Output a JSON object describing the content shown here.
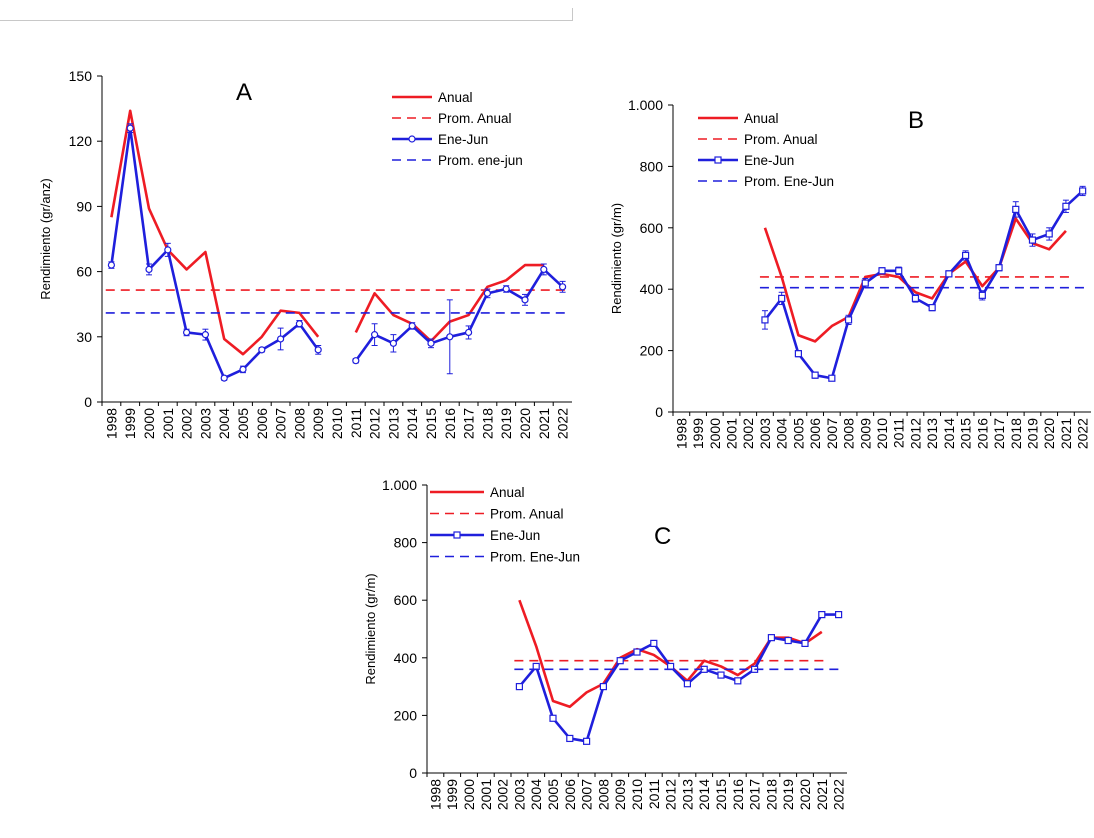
{
  "chart_data": [
    {
      "panel": "A",
      "type": "line",
      "ylabel": "Rendimiento (gr/anz)",
      "ylim": [
        0,
        150
      ],
      "yticks": [
        0,
        30,
        60,
        90,
        120,
        150
      ],
      "yticklabels": [
        "0",
        "30",
        "60",
        "90",
        "120",
        "150"
      ],
      "categories": [
        "1998",
        "1999",
        "2000",
        "2001",
        "2002",
        "2003",
        "2004",
        "2005",
        "2006",
        "2007",
        "2008",
        "2009",
        "2010",
        "2011",
        "2012",
        "2013",
        "2014",
        "2015",
        "2016",
        "2017",
        "2018",
        "2019",
        "2020",
        "2021",
        "2022"
      ],
      "legend_position": "top-right",
      "series": [
        {
          "name": "Anual",
          "color": "#ee1c24",
          "style": "solid",
          "values": [
            85,
            134,
            89,
            70,
            61,
            69,
            29,
            22,
            30,
            42,
            41,
            30,
            null,
            32,
            50,
            40,
            36,
            28,
            37,
            40,
            53,
            56,
            63,
            63,
            null
          ]
        },
        {
          "name": "Prom. Anual",
          "color": "#ee1c24",
          "style": "dashed",
          "constant": 51.5,
          "x_range": [
            "1998",
            "2022"
          ]
        },
        {
          "name": "Ene-Jun",
          "color": "#1f1fdc",
          "style": "solid",
          "marker": "circle",
          "values": [
            63,
            126,
            61,
            70,
            32,
            31,
            11,
            15,
            24,
            29,
            36,
            24,
            null,
            19,
            31,
            27,
            35,
            27,
            30,
            32,
            50,
            52,
            47,
            61,
            53
          ],
          "errors": [
            1.5,
            2,
            2.5,
            3,
            1.5,
            2.5,
            1,
            1.5,
            1,
            5,
            1.5,
            2,
            null,
            1,
            5,
            4,
            1.5,
            2,
            17,
            3,
            2,
            1.5,
            2.5,
            2.5,
            2.5
          ]
        },
        {
          "name": "Prom. ene-jun",
          "color": "#1f1fdc",
          "style": "dashed",
          "constant": 41,
          "x_range": [
            "1998",
            "2022"
          ]
        }
      ]
    },
    {
      "panel": "B",
      "type": "line",
      "ylabel": "Rendimiento (gr/m)",
      "ylim": [
        0,
        1000
      ],
      "yticks": [
        0,
        200,
        400,
        600,
        800,
        1000
      ],
      "yticklabels": [
        "0",
        "200",
        "400",
        "600",
        "800",
        "1.000"
      ],
      "categories": [
        "1998",
        "1999",
        "2000",
        "2001",
        "2002",
        "2003",
        "2004",
        "2005",
        "2006",
        "2007",
        "2008",
        "2009",
        "2010",
        "2011",
        "2012",
        "2013",
        "2014",
        "2015",
        "2016",
        "2017",
        "2018",
        "2019",
        "2020",
        "2021",
        "2022"
      ],
      "legend_position": "top-left",
      "series": [
        {
          "name": "Anual",
          "color": "#ee1c24",
          "style": "solid",
          "values": [
            null,
            null,
            null,
            null,
            null,
            600,
            440,
            250,
            230,
            280,
            310,
            440,
            450,
            440,
            390,
            370,
            450,
            490,
            410,
            470,
            630,
            550,
            530,
            590,
            null
          ]
        },
        {
          "name": "Prom. Anual",
          "color": "#ee1c24",
          "style": "dashed",
          "constant": 440,
          "x_range": [
            "2003",
            "2021"
          ]
        },
        {
          "name": "Ene-Jun",
          "color": "#1f1fdc",
          "style": "solid",
          "marker": "square",
          "values": [
            null,
            null,
            null,
            null,
            null,
            300,
            370,
            190,
            120,
            110,
            300,
            420,
            460,
            460,
            370,
            340,
            450,
            510,
            380,
            470,
            660,
            560,
            580,
            670,
            720
          ],
          "errors": [
            null,
            null,
            null,
            null,
            null,
            30,
            20,
            10,
            10,
            8,
            15,
            15,
            10,
            12,
            12,
            10,
            10,
            15,
            15,
            10,
            25,
            20,
            20,
            20,
            15
          ]
        },
        {
          "name": "Prom. Ene-Jun",
          "color": "#1f1fdc",
          "style": "dashed",
          "constant": 405,
          "x_range": [
            "2003",
            "2022"
          ]
        }
      ]
    },
    {
      "panel": "C",
      "type": "line",
      "ylabel": "Rendimiento (gr/m)",
      "ylim": [
        0,
        1000
      ],
      "yticks": [
        0,
        200,
        400,
        600,
        800,
        1000
      ],
      "yticklabels": [
        "0",
        "200",
        "400",
        "600",
        "800",
        "1.000"
      ],
      "categories": [
        "1998",
        "1999",
        "2000",
        "2001",
        "2002",
        "2003",
        "2004",
        "2005",
        "2006",
        "2007",
        "2008",
        "2009",
        "2010",
        "2011",
        "2012",
        "2013",
        "2014",
        "2015",
        "2016",
        "2017",
        "2018",
        "2019",
        "2020",
        "2021",
        "2022"
      ],
      "legend_position": "top-left",
      "series": [
        {
          "name": "Anual",
          "color": "#ee1c24",
          "style": "solid",
          "values": [
            null,
            null,
            null,
            null,
            null,
            600,
            440,
            250,
            230,
            280,
            310,
            400,
            430,
            410,
            370,
            320,
            390,
            370,
            340,
            380,
            470,
            470,
            450,
            490,
            null
          ]
        },
        {
          "name": "Prom. Anual",
          "color": "#ee1c24",
          "style": "dashed",
          "constant": 390,
          "x_range": [
            "2003",
            "2021"
          ]
        },
        {
          "name": "Ene-Jun",
          "color": "#1f1fdc",
          "style": "solid",
          "marker": "square",
          "values": [
            null,
            null,
            null,
            null,
            null,
            300,
            370,
            190,
            120,
            110,
            300,
            390,
            420,
            450,
            370,
            310,
            360,
            340,
            320,
            360,
            470,
            460,
            450,
            550,
            550
          ]
        },
        {
          "name": "Prom. Ene-Jun",
          "color": "#1f1fdc",
          "style": "dashed",
          "constant": 360,
          "x_range": [
            "2003",
            "2022"
          ]
        }
      ]
    }
  ]
}
